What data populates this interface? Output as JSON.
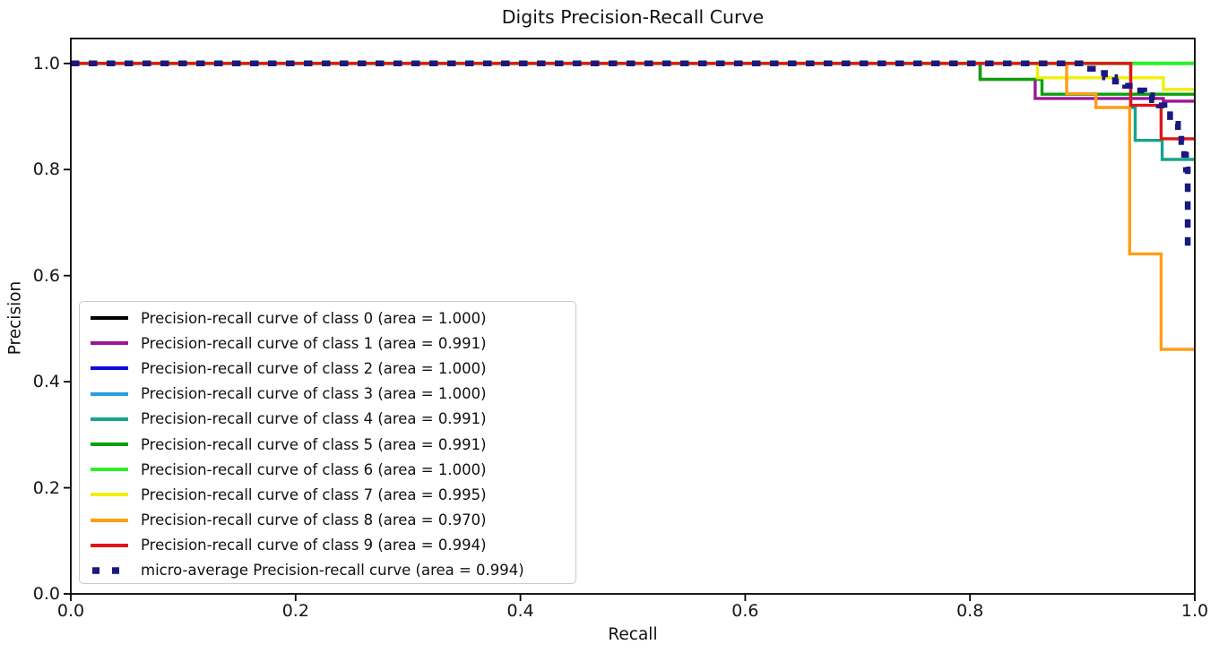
{
  "chart_data": {
    "type": "line",
    "title": "Digits Precision-Recall Curve",
    "xlabel": "Recall",
    "ylabel": "Precision",
    "xlim": [
      0.0,
      1.0
    ],
    "ylim": [
      0.0,
      1.05
    ],
    "xticks": [
      "0.0",
      "0.2",
      "0.4",
      "0.6",
      "0.8",
      "1.0"
    ],
    "yticks": [
      "0.0",
      "0.2",
      "0.4",
      "0.6",
      "0.8",
      "1.0"
    ],
    "grid": false,
    "legend_position": "lower left",
    "axis_color": "#000000",
    "series": [
      {
        "name": "class-0",
        "label": "Precision-recall curve of class 0 (area = 1.000)",
        "area": "1.000",
        "color": "#000000",
        "dash": false,
        "points": [
          [
            0,
            1
          ],
          [
            1,
            1
          ]
        ]
      },
      {
        "name": "class-1",
        "label": "Precision-recall curve of class 1 (area = 0.991)",
        "area": "0.991",
        "color": "#9a169a",
        "dash": false,
        "points": [
          [
            0,
            1
          ],
          [
            0.809,
            1
          ],
          [
            0.809,
            0.97
          ],
          [
            0.858,
            0.97
          ],
          [
            0.858,
            0.934
          ],
          [
            0.972,
            0.934
          ],
          [
            0.972,
            0.929
          ],
          [
            1,
            0.929
          ]
        ]
      },
      {
        "name": "class-2",
        "label": "Precision-recall curve of class 2 (area = 1.000)",
        "area": "1.000",
        "color": "#0b0bdf",
        "dash": false,
        "points": [
          [
            0,
            1
          ],
          [
            1,
            1
          ]
        ]
      },
      {
        "name": "class-3",
        "label": "Precision-recall curve of class 3 (area = 1.000)",
        "area": "1.000",
        "color": "#2b9ede",
        "dash": false,
        "points": [
          [
            0,
            1
          ],
          [
            1,
            1
          ]
        ]
      },
      {
        "name": "class-4",
        "label": "Precision-recall curve of class 4 (area = 0.991)",
        "area": "0.991",
        "color": "#17a48c",
        "dash": false,
        "points": [
          [
            0,
            1
          ],
          [
            0.943,
            1
          ],
          [
            0.943,
            0.917
          ],
          [
            0.947,
            0.917
          ],
          [
            0.947,
            0.855
          ],
          [
            0.971,
            0.855
          ],
          [
            0.971,
            0.819
          ],
          [
            1,
            0.819
          ]
        ]
      },
      {
        "name": "class-5",
        "label": "Precision-recall curve of class 5 (area = 0.991)",
        "area": "0.991",
        "color": "#0aa10a",
        "dash": false,
        "points": [
          [
            0,
            1
          ],
          [
            0.809,
            1
          ],
          [
            0.809,
            0.97
          ],
          [
            0.864,
            0.97
          ],
          [
            0.864,
            0.942
          ],
          [
            1,
            0.942
          ]
        ]
      },
      {
        "name": "class-6",
        "label": "Precision-recall curve of class 6 (area = 1.000)",
        "area": "1.000",
        "color": "#2bef2b",
        "dash": false,
        "points": [
          [
            0,
            1
          ],
          [
            1,
            1
          ]
        ]
      },
      {
        "name": "class-7",
        "label": "Precision-recall curve of class 7 (area = 0.995)",
        "area": "0.995",
        "color": "#efef08",
        "dash": false,
        "points": [
          [
            0,
            1
          ],
          [
            0.86,
            1
          ],
          [
            0.86,
            0.973
          ],
          [
            0.972,
            0.973
          ],
          [
            0.972,
            0.951
          ],
          [
            1,
            0.951
          ]
        ]
      },
      {
        "name": "class-8",
        "label": "Precision-recall curve of class 8 (area = 0.970)",
        "area": "0.970",
        "color": "#ff9d15",
        "dash": false,
        "points": [
          [
            0,
            1
          ],
          [
            0.886,
            1
          ],
          [
            0.886,
            0.943
          ],
          [
            0.912,
            0.943
          ],
          [
            0.912,
            0.917
          ],
          [
            0.942,
            0.917
          ],
          [
            0.942,
            0.641
          ],
          [
            0.97,
            0.641
          ],
          [
            0.97,
            0.461
          ],
          [
            1,
            0.461
          ]
        ]
      },
      {
        "name": "class-9",
        "label": "Precision-recall curve of class 9 (area = 0.994)",
        "area": "0.994",
        "color": "#df1616",
        "dash": false,
        "points": [
          [
            0,
            1
          ],
          [
            0.943,
            1
          ],
          [
            0.943,
            0.921
          ],
          [
            0.97,
            0.921
          ],
          [
            0.97,
            0.858
          ],
          [
            1,
            0.858
          ]
        ]
      },
      {
        "name": "micro-average",
        "label": "micro-average Precision-recall curve (area = 0.994)",
        "area": "0.994",
        "color": "#19197e",
        "dash": true,
        "points": [
          [
            0,
            1
          ],
          [
            0.904,
            1
          ],
          [
            0.904,
            0.99
          ],
          [
            0.912,
            0.99
          ],
          [
            0.912,
            0.982
          ],
          [
            0.92,
            0.982
          ],
          [
            0.92,
            0.974
          ],
          [
            0.929,
            0.974
          ],
          [
            0.929,
            0.966
          ],
          [
            0.938,
            0.966
          ],
          [
            0.938,
            0.958
          ],
          [
            0.947,
            0.958
          ],
          [
            0.947,
            0.949
          ],
          [
            0.955,
            0.949
          ],
          [
            0.955,
            0.94
          ],
          [
            0.962,
            0.94
          ],
          [
            0.962,
            0.931
          ],
          [
            0.968,
            0.931
          ],
          [
            0.968,
            0.921
          ],
          [
            0.973,
            0.921
          ],
          [
            0.973,
            0.911
          ],
          [
            0.978,
            0.911
          ],
          [
            0.978,
            0.899
          ],
          [
            0.982,
            0.899
          ],
          [
            0.982,
            0.886
          ],
          [
            0.985,
            0.886
          ],
          [
            0.985,
            0.871
          ],
          [
            0.988,
            0.871
          ],
          [
            0.988,
            0.852
          ],
          [
            0.9905,
            0.852
          ],
          [
            0.9905,
            0.828
          ],
          [
            0.9922,
            0.828
          ],
          [
            0.9922,
            0.8
          ],
          [
            0.9937,
            0.8
          ],
          [
            0.9937,
            0.655
          ]
        ]
      }
    ]
  }
}
